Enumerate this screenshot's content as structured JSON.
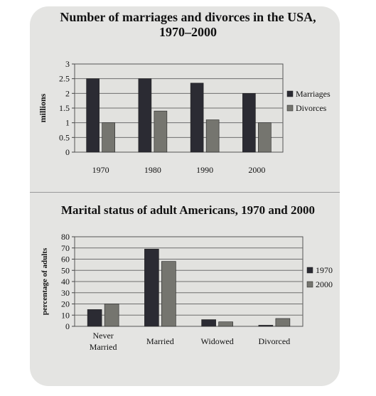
{
  "chart_data": [
    {
      "type": "bar",
      "title": "Number of marriages and divorces in the USA,",
      "subtitle": "1970–2000",
      "ylabel": "millions",
      "ylim": [
        0,
        3
      ],
      "yticks": [
        "0",
        "0.5",
        "1",
        "1.5",
        "2",
        "2.5",
        "3"
      ],
      "categories": [
        "1970",
        "1980",
        "1990",
        "2000"
      ],
      "series": [
        {
          "name": "Marriages",
          "values": [
            2.5,
            2.5,
            2.35,
            2.0
          ],
          "color": "#2b2b33"
        },
        {
          "name": "Divorces",
          "values": [
            1.0,
            1.4,
            1.1,
            1.0
          ],
          "color": "#75756f"
        }
      ],
      "legend": "right",
      "grid": true
    },
    {
      "type": "bar",
      "title": "Marital status of adult Americans, 1970 and 2000",
      "ylabel": "percentage of adults",
      "ylim": [
        0,
        80
      ],
      "yticks": [
        "0",
        "10",
        "20",
        "30",
        "40",
        "50",
        "60",
        "70",
        "80"
      ],
      "categories": [
        "Never Married",
        "Married",
        "Widowed",
        "Divorced"
      ],
      "category_lines": [
        [
          "Never",
          "Married"
        ],
        [
          "Married"
        ],
        [
          "Widowed"
        ],
        [
          "Divorced"
        ]
      ],
      "series": [
        {
          "name": "1970",
          "values": [
            15,
            69,
            6,
            1
          ],
          "color": "#2b2b33"
        },
        {
          "name": "2000",
          "values": [
            20,
            58,
            4,
            7
          ],
          "color": "#75756f"
        }
      ],
      "legend": "right",
      "grid": true
    }
  ]
}
